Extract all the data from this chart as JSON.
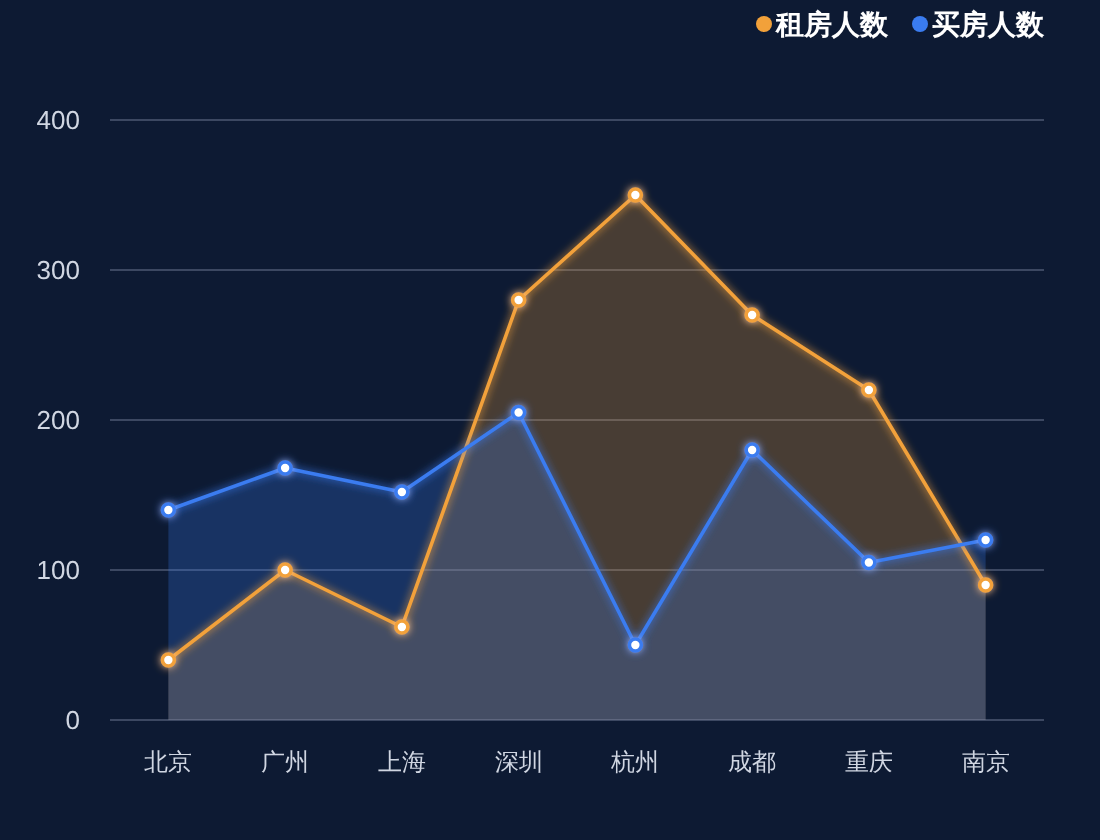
{
  "chart_data": {
    "type": "area",
    "categories": [
      "北京",
      "广州",
      "上海",
      "深圳",
      "杭州",
      "成都",
      "重庆",
      "南京"
    ],
    "series": [
      {
        "name": "租房人数",
        "color": "#f2a13a",
        "values": [
          40,
          100,
          62,
          280,
          350,
          270,
          220,
          90
        ]
      },
      {
        "name": "买房人数",
        "color": "#3a7cf0",
        "values": [
          140,
          168,
          152,
          205,
          50,
          180,
          105,
          120
        ]
      }
    ],
    "ylim": [
      0,
      400
    ],
    "yticks": [
      0,
      100,
      200,
      300,
      400
    ],
    "grid": "y",
    "legend": "top right",
    "marker": "circle"
  }
}
